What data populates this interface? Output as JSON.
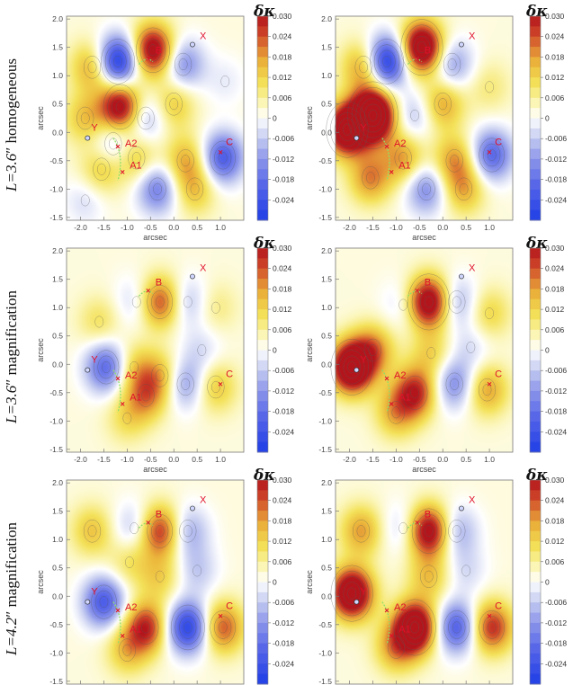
{
  "figure": {
    "row_labels": [
      [
        "L=3.6",
        "″ homogeneous"
      ],
      [
        "L=3.6",
        "″ magnification"
      ],
      [
        "L=4.2",
        "″ magnification"
      ]
    ],
    "colorbar_title": "δκ",
    "colorbar_ticks": [
      "0.030",
      "0.024",
      "0.018",
      "0.012",
      "0.006",
      "0",
      "-0.006",
      "-0.012",
      "-0.018",
      "-0.024"
    ],
    "colors": {
      "max_red": "#b3161b",
      "red": "#d53a26",
      "orange": "#e8883a",
      "yellow": "#f1d73e",
      "light_yellow": "#fbf6b6",
      "white": "#ffffff",
      "light_blue": "#c6cbee",
      "blue": "#6f78e6",
      "deep_blue": "#1f3ee6",
      "marker_red": "#e0102a",
      "crit_green": "#8fe06a"
    },
    "xaxis_label": "arcsec",
    "yaxis_label": "arcsec",
    "x_ticks": [
      "-2.0",
      "-1.5",
      "-1.0",
      "-0.5",
      "0.0",
      "0.5",
      "1.0"
    ],
    "y_ticks": [
      "2.0",
      "1.5",
      "1.0",
      "0.5",
      "0.0",
      "-0.5",
      "-1.0",
      "-1.5"
    ]
  },
  "chart_data": {
    "type": "heatmap",
    "value_range": [
      -0.03,
      0.03
    ],
    "x_range": [
      -2.3,
      1.5
    ],
    "y_range": [
      -1.55,
      2.05
    ],
    "image_labels": [
      {
        "name": "X",
        "x": 0.4,
        "y": 1.55
      },
      {
        "name": "B",
        "x": -0.55,
        "y": 1.3
      },
      {
        "name": "Y",
        "x": -1.85,
        "y": -0.1
      },
      {
        "name": "A2",
        "x": -1.2,
        "y": -0.25
      },
      {
        "name": "A1",
        "x": -1.1,
        "y": -0.7
      },
      {
        "name": "C",
        "x": 1.0,
        "y": -0.35
      }
    ],
    "panels": [
      {
        "row": 0,
        "col": 0,
        "blobs": [
          {
            "x": -1.2,
            "y": 1.25,
            "a": -0.034
          },
          {
            "x": -0.45,
            "y": 1.45,
            "a": 0.034
          },
          {
            "x": -1.75,
            "y": 1.15,
            "a": 0.016
          },
          {
            "x": 0.2,
            "y": 1.2,
            "a": -0.016
          },
          {
            "x": -1.15,
            "y": 0.45,
            "a": 0.034
          },
          {
            "x": -0.6,
            "y": 0.25,
            "a": -0.012
          },
          {
            "x": 0.0,
            "y": 0.5,
            "a": 0.012
          },
          {
            "x": -1.9,
            "y": 0.25,
            "a": 0.012
          },
          {
            "x": 1.05,
            "y": -0.45,
            "a": -0.024
          },
          {
            "x": -1.3,
            "y": -0.2,
            "a": -0.012
          },
          {
            "x": -0.35,
            "y": -1.0,
            "a": -0.018
          },
          {
            "x": 0.25,
            "y": -0.5,
            "a": 0.014
          },
          {
            "x": -1.55,
            "y": -0.65,
            "a": 0.012
          },
          {
            "x": -0.8,
            "y": -0.45,
            "a": 0.012
          },
          {
            "x": 0.45,
            "y": -1.0,
            "a": 0.012
          },
          {
            "x": 1.1,
            "y": 0.9,
            "a": -0.004
          },
          {
            "x": -1.9,
            "y": -1.2,
            "a": -0.006
          }
        ]
      },
      {
        "row": 0,
        "col": 1,
        "blobs": [
          {
            "x": -1.2,
            "y": 1.25,
            "a": -0.034
          },
          {
            "x": -0.45,
            "y": 1.5,
            "a": 0.04
          },
          {
            "x": -1.7,
            "y": 1.15,
            "a": 0.018
          },
          {
            "x": 0.2,
            "y": 1.2,
            "a": -0.014
          },
          {
            "x": -1.5,
            "y": 0.3,
            "a": 0.05
          },
          {
            "x": -2.05,
            "y": 0.05,
            "a": 0.04
          },
          {
            "x": -0.6,
            "y": 0.3,
            "a": -0.01
          },
          {
            "x": 0.0,
            "y": 0.5,
            "a": 0.016
          },
          {
            "x": 1.05,
            "y": -0.4,
            "a": -0.022
          },
          {
            "x": -0.35,
            "y": -1.0,
            "a": -0.016
          },
          {
            "x": 0.25,
            "y": -0.5,
            "a": 0.016
          },
          {
            "x": -0.85,
            "y": -0.45,
            "a": 0.016
          },
          {
            "x": -1.55,
            "y": -0.8,
            "a": 0.018
          },
          {
            "x": 0.45,
            "y": -1.0,
            "a": 0.014
          },
          {
            "x": 1.0,
            "y": 0.8,
            "a": 0.006
          }
        ]
      },
      {
        "row": 1,
        "col": 0,
        "blobs": [
          {
            "x": -0.3,
            "y": 1.1,
            "a": 0.024
          },
          {
            "x": -0.8,
            "y": 1.1,
            "a": -0.008
          },
          {
            "x": 0.3,
            "y": 1.1,
            "a": -0.01
          },
          {
            "x": -1.45,
            "y": -0.05,
            "a": -0.022
          },
          {
            "x": -1.6,
            "y": 0.75,
            "a": 0.008
          },
          {
            "x": -0.85,
            "y": -0.05,
            "a": 0.01
          },
          {
            "x": -0.6,
            "y": -0.55,
            "a": 0.016
          },
          {
            "x": 0.25,
            "y": -0.35,
            "a": -0.014
          },
          {
            "x": 0.9,
            "y": -0.4,
            "a": 0.012
          },
          {
            "x": -0.3,
            "y": -0.2,
            "a": 0.012
          },
          {
            "x": -1.0,
            "y": -0.95,
            "a": 0.008
          },
          {
            "x": 0.6,
            "y": 0.25,
            "a": -0.006
          },
          {
            "x": 0.9,
            "y": 1.0,
            "a": 0.006
          }
        ]
      },
      {
        "row": 1,
        "col": 1,
        "blobs": [
          {
            "x": -0.3,
            "y": 1.1,
            "a": 0.036
          },
          {
            "x": -0.85,
            "y": 1.05,
            "a": -0.006
          },
          {
            "x": 0.3,
            "y": 1.1,
            "a": -0.012
          },
          {
            "x": -1.95,
            "y": -0.05,
            "a": 0.042
          },
          {
            "x": -1.5,
            "y": 0.25,
            "a": 0.018
          },
          {
            "x": -0.6,
            "y": -0.5,
            "a": 0.026
          },
          {
            "x": 0.25,
            "y": -0.35,
            "a": -0.016
          },
          {
            "x": 0.95,
            "y": -0.45,
            "a": 0.016
          },
          {
            "x": -1.0,
            "y": -0.85,
            "a": 0.014
          },
          {
            "x": -0.25,
            "y": 0.2,
            "a": 0.01
          },
          {
            "x": 0.6,
            "y": 0.3,
            "a": -0.006
          },
          {
            "x": 1.0,
            "y": 0.9,
            "a": 0.01
          }
        ]
      },
      {
        "row": 2,
        "col": 0,
        "blobs": [
          {
            "x": -0.3,
            "y": 1.15,
            "a": 0.026
          },
          {
            "x": -0.85,
            "y": 1.2,
            "a": -0.01
          },
          {
            "x": 0.3,
            "y": 1.15,
            "a": -0.012
          },
          {
            "x": -1.75,
            "y": 1.15,
            "a": 0.012
          },
          {
            "x": -1.5,
            "y": -0.1,
            "a": -0.024
          },
          {
            "x": -0.6,
            "y": -0.55,
            "a": 0.026
          },
          {
            "x": 0.3,
            "y": -0.55,
            "a": -0.03
          },
          {
            "x": 1.05,
            "y": -0.55,
            "a": 0.022
          },
          {
            "x": -0.3,
            "y": 0.35,
            "a": 0.01
          },
          {
            "x": -1.0,
            "y": -0.95,
            "a": 0.012
          },
          {
            "x": 0.5,
            "y": 0.45,
            "a": -0.008
          },
          {
            "x": -0.95,
            "y": 0.6,
            "a": 0.008
          }
        ]
      },
      {
        "row": 2,
        "col": 1,
        "blobs": [
          {
            "x": -0.3,
            "y": 1.15,
            "a": 0.034
          },
          {
            "x": -0.85,
            "y": 1.2,
            "a": -0.008
          },
          {
            "x": 0.3,
            "y": 1.15,
            "a": -0.012
          },
          {
            "x": -1.75,
            "y": 1.15,
            "a": 0.016
          },
          {
            "x": -1.95,
            "y": 0.05,
            "a": 0.04
          },
          {
            "x": -0.6,
            "y": -0.55,
            "a": 0.04
          },
          {
            "x": 0.3,
            "y": -0.55,
            "a": -0.024
          },
          {
            "x": 1.05,
            "y": -0.55,
            "a": 0.026
          },
          {
            "x": -0.3,
            "y": 0.35,
            "a": 0.012
          },
          {
            "x": -1.0,
            "y": -0.9,
            "a": 0.016
          },
          {
            "x": 0.5,
            "y": 0.45,
            "a": -0.006
          }
        ]
      }
    ]
  }
}
